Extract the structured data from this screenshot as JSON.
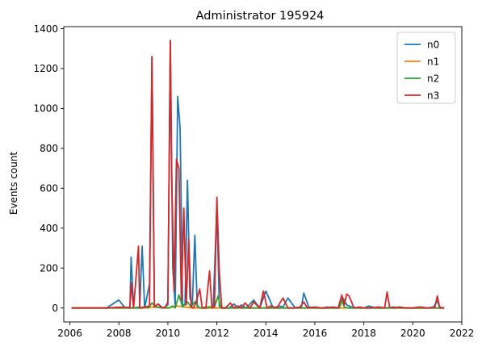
{
  "chart_data": {
    "type": "line",
    "title": "Administrator 195924",
    "xlabel": "",
    "ylabel": "Events count",
    "xlim": [
      2005.75,
      2022
    ],
    "ylim": [
      -70,
      1410
    ],
    "xticks": [
      2006,
      2008,
      2010,
      2012,
      2014,
      2016,
      2018,
      2020,
      2022
    ],
    "yticks": [
      0,
      200,
      400,
      600,
      800,
      1000,
      1200,
      1400
    ],
    "legend_position": "top-right",
    "grid": false,
    "series": [
      {
        "name": "n0",
        "color": "#1f77b4",
        "x": [
          2006.1,
          2007.5,
          2008.0,
          2008.25,
          2008.45,
          2008.5,
          2008.6,
          2008.85,
          2008.95,
          2009.05,
          2009.25,
          2009.35,
          2009.45,
          2009.6,
          2009.8,
          2010.0,
          2010.1,
          2010.2,
          2010.3,
          2010.4,
          2010.5,
          2010.6,
          2010.7,
          2010.8,
          2010.9,
          2011.0,
          2011.1,
          2011.2,
          2011.3,
          2011.4,
          2011.55,
          2011.7,
          2011.85,
          2012.0,
          2012.1,
          2012.25,
          2012.5,
          2012.7,
          2012.85,
          2013.0,
          2013.2,
          2013.5,
          2013.75,
          2014.0,
          2014.3,
          2014.55,
          2014.7,
          2014.9,
          2015.2,
          2015.45,
          2015.55,
          2015.75,
          2016.0,
          2016.3,
          2016.5,
          2016.75,
          2017.0,
          2017.15,
          2017.3,
          2017.5,
          2017.75,
          2018.0,
          2018.2,
          2018.5,
          2018.8,
          2019.0,
          2019.2,
          2019.5,
          2019.8,
          2020.0,
          2020.3,
          2020.6,
          2020.85,
          2021.0,
          2021.1,
          2021.25
        ],
        "y": [
          0,
          0,
          40,
          0,
          5,
          255,
          0,
          5,
          310,
          0,
          120,
          1260,
          5,
          20,
          0,
          15,
          1340,
          200,
          10,
          1060,
          900,
          10,
          20,
          640,
          50,
          20,
          365,
          5,
          0,
          0,
          0,
          0,
          5,
          505,
          10,
          0,
          0,
          20,
          0,
          15,
          0,
          40,
          0,
          85,
          0,
          10,
          5,
          50,
          0,
          5,
          75,
          5,
          0,
          0,
          5,
          0,
          0,
          50,
          15,
          5,
          0,
          0,
          10,
          0,
          0,
          0,
          5,
          0,
          0,
          0,
          0,
          0,
          5,
          35,
          5,
          0
        ]
      },
      {
        "name": "n1",
        "color": "#ff7f0e",
        "x": [
          2006.1,
          2008.0,
          2009.0,
          2009.4,
          2010.0,
          2010.4,
          2011.0,
          2012.0,
          2013.0,
          2015.0,
          2017.0,
          2019.0,
          2021.0,
          2021.25
        ],
        "y": [
          0,
          0,
          0,
          5,
          0,
          10,
          0,
          0,
          0,
          0,
          0,
          0,
          0,
          0
        ]
      },
      {
        "name": "n2",
        "color": "#2ca02c",
        "x": [
          2006.1,
          2008.0,
          2008.5,
          2008.8,
          2009.0,
          2009.2,
          2009.35,
          2009.5,
          2009.8,
          2010.05,
          2010.2,
          2010.3,
          2010.45,
          2010.6,
          2010.8,
          2010.95,
          2011.1,
          2011.3,
          2011.6,
          2011.9,
          2012.05,
          2012.15,
          2012.3,
          2012.6,
          2013.0,
          2014.0,
          2015.0,
          2015.5,
          2016.0,
          2017.0,
          2017.1,
          2017.2,
          2017.35,
          2017.6,
          2018.0,
          2019.0,
          2020.0,
          2021.0,
          2021.25
        ],
        "y": [
          0,
          0,
          0,
          0,
          5,
          0,
          25,
          5,
          0,
          0,
          10,
          0,
          65,
          5,
          30,
          5,
          30,
          0,
          5,
          5,
          60,
          0,
          0,
          0,
          0,
          0,
          0,
          0,
          0,
          0,
          40,
          5,
          0,
          0,
          0,
          0,
          0,
          0,
          0
        ]
      },
      {
        "name": "n3",
        "color": "#d62728",
        "x": [
          2006.1,
          2007.5,
          2008.2,
          2008.45,
          2008.5,
          2008.6,
          2008.8,
          2008.85,
          2008.95,
          2009.05,
          2009.25,
          2009.35,
          2009.45,
          2009.6,
          2009.75,
          2009.9,
          2010.0,
          2010.1,
          2010.15,
          2010.25,
          2010.35,
          2010.45,
          2010.55,
          2010.65,
          2010.75,
          2010.85,
          2010.95,
          2011.05,
          2011.15,
          2011.3,
          2011.4,
          2011.55,
          2011.7,
          2011.8,
          2011.9,
          2012.0,
          2012.1,
          2012.2,
          2012.35,
          2012.55,
          2012.7,
          2012.85,
          2013.0,
          2013.15,
          2013.35,
          2013.5,
          2013.75,
          2013.9,
          2014.05,
          2014.2,
          2014.45,
          2014.7,
          2014.9,
          2015.15,
          2015.4,
          2015.55,
          2015.7,
          2016.0,
          2016.25,
          2016.5,
          2016.75,
          2016.95,
          2017.1,
          2017.2,
          2017.3,
          2017.4,
          2017.6,
          2017.85,
          2018.0,
          2018.3,
          2018.6,
          2018.85,
          2018.95,
          2019.05,
          2019.2,
          2019.45,
          2019.7,
          2020.0,
          2020.3,
          2020.55,
          2020.75,
          2020.9,
          2021.0,
          2021.1,
          2021.25
        ],
        "y": [
          0,
          0,
          5,
          0,
          125,
          0,
          310,
          0,
          0,
          5,
          10,
          1260,
          5,
          20,
          0,
          5,
          30,
          1340,
          700,
          85,
          745,
          700,
          40,
          500,
          15,
          345,
          5,
          0,
          30,
          95,
          0,
          0,
          185,
          0,
          5,
          555,
          180,
          0,
          0,
          25,
          0,
          10,
          0,
          25,
          0,
          30,
          0,
          85,
          0,
          10,
          0,
          50,
          0,
          0,
          5,
          30,
          0,
          5,
          0,
          0,
          5,
          0,
          65,
          15,
          70,
          60,
          0,
          5,
          0,
          0,
          5,
          0,
          80,
          5,
          0,
          5,
          0,
          0,
          5,
          0,
          0,
          5,
          60,
          0,
          0
        ]
      }
    ]
  }
}
